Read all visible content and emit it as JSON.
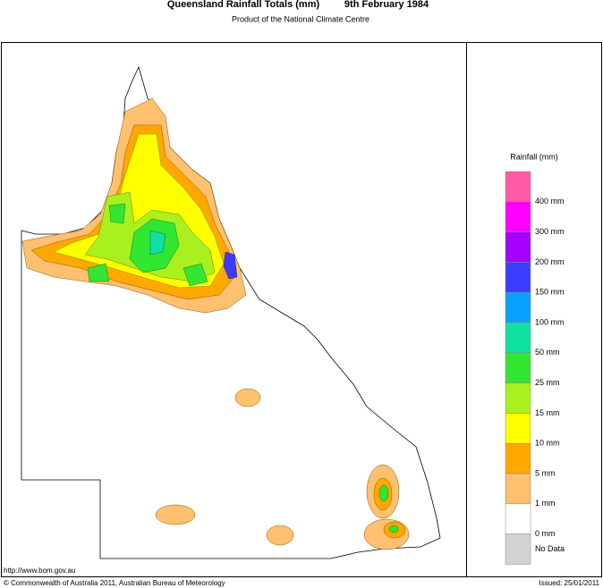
{
  "header": {
    "title": "Queensland Rainfall Totals (mm)",
    "date": "9th February 1984",
    "subtitle": "Product of the National Climate Centre"
  },
  "legend": {
    "title": "Rainfall (mm)",
    "colors": [
      "#ff5aa5",
      "#ff00ff",
      "#a300ff",
      "#3c3cff",
      "#0aa0ff",
      "#10e0a0",
      "#32e632",
      "#aaf01e",
      "#ffff00",
      "#ffa800",
      "#ffc070",
      "#ffffff",
      "#d2d2d2"
    ],
    "labels": [
      "400 mm",
      "300 mm",
      "200 mm",
      "150 mm",
      "100 mm",
      "50 mm",
      "25 mm",
      "15 mm",
      "10 mm",
      "5 mm",
      "1 mm",
      "0 mm",
      "No Data"
    ]
  },
  "footer": {
    "url": "http://www.bom.gov.au",
    "copyright": "© Commonwealth of Australia 2011, Australian Bureau of Meteorology",
    "issued": "Issued: 25/01/2011"
  }
}
